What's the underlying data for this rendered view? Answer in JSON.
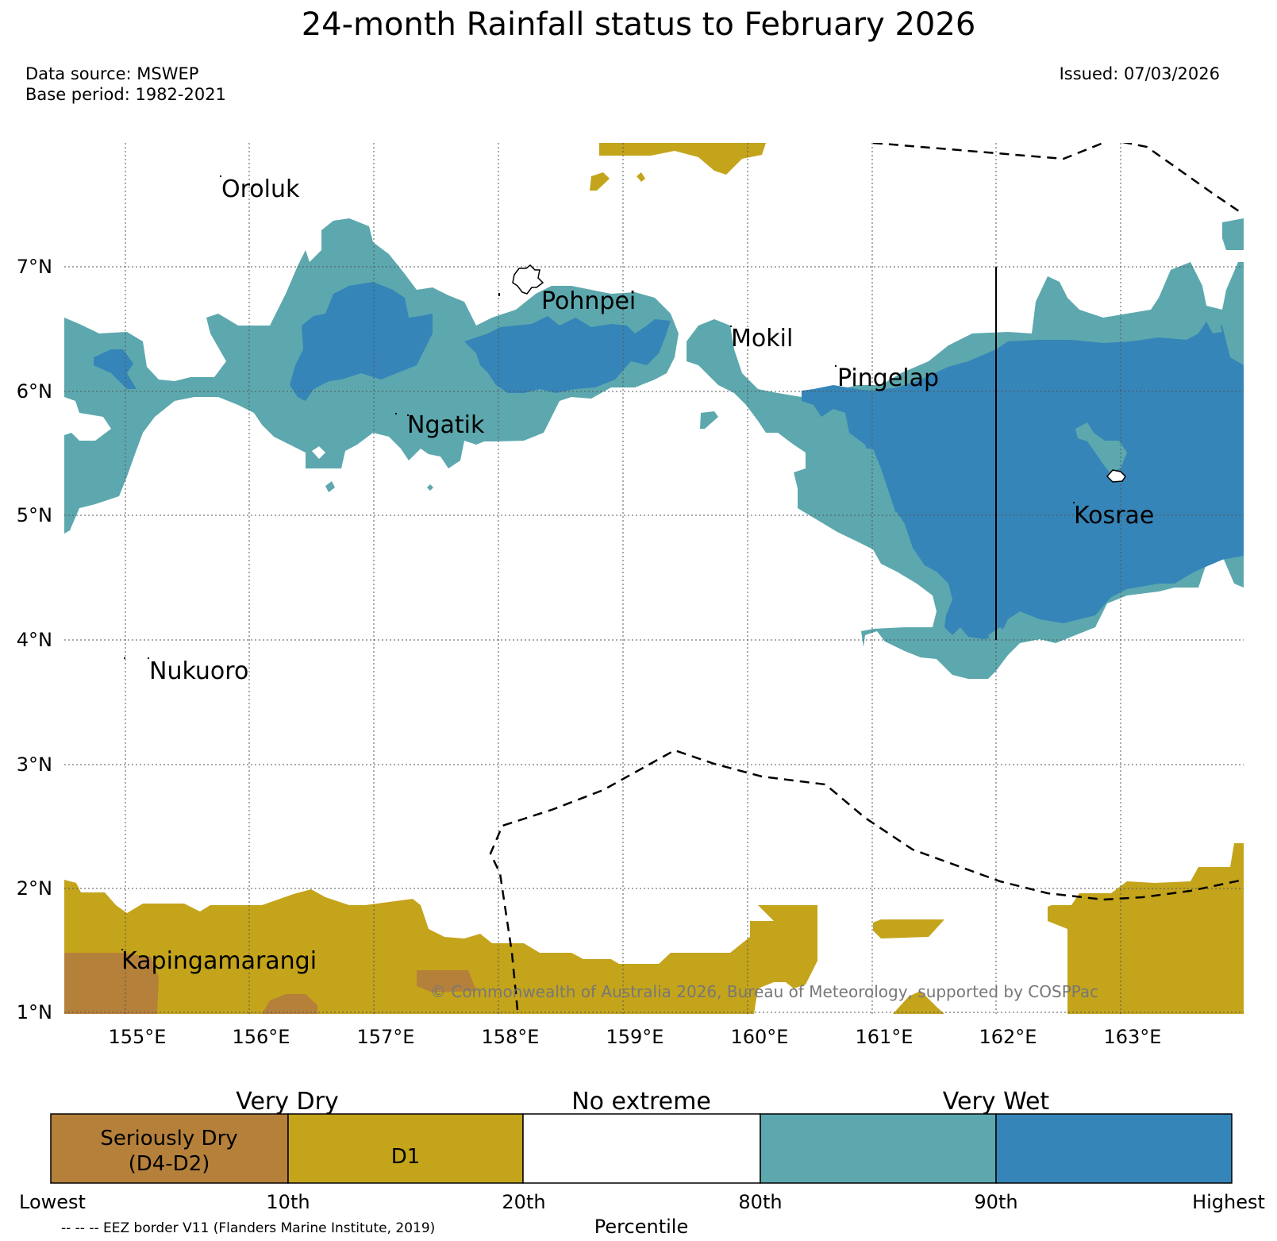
{
  "title": "24-month Rainfall status to February 2026",
  "data_source": "Data source: MSWEP",
  "base_period": "Base period: 1982-2021",
  "issued": "Issued: 07/03/2026",
  "copyright": "© Commonwealth of Australia 2026, Bureau of Meteorology, supported by COSPPac",
  "colors": {
    "seriously_dry": "#b5803a",
    "d1": "#c4a41b",
    "no_extreme": "#ffffff",
    "very_wet_80_90": "#5ca8ae",
    "very_wet_90_highest": "#3585b8"
  },
  "map": {
    "lat_labels": [
      "7°N",
      "6°N",
      "5°N",
      "4°N",
      "3°N",
      "2°N",
      "1°N"
    ],
    "lon_labels": [
      "155°E",
      "156°E",
      "157°E",
      "158°E",
      "159°E",
      "160°E",
      "161°E",
      "162°E",
      "163°E"
    ],
    "places": [
      {
        "name": "Oroluk"
      },
      {
        "name": "Pohnpei"
      },
      {
        "name": "Mokil"
      },
      {
        "name": "Pingelap"
      },
      {
        "name": "Ngatik"
      },
      {
        "name": "Kosrae"
      },
      {
        "name": "Nukuoro"
      },
      {
        "name": "Kapingamarangi"
      }
    ]
  },
  "legend": {
    "group_labels": [
      "Very Dry",
      "No extreme",
      "Very Wet"
    ],
    "boxes": [
      {
        "label_line1": "Seriously Dry",
        "label_line2": "(D4-D2)"
      },
      {
        "label_line1": "D1",
        "label_line2": ""
      },
      {
        "label_line1": "",
        "label_line2": ""
      },
      {
        "label_line1": "",
        "label_line2": ""
      },
      {
        "label_line1": "",
        "label_line2": ""
      }
    ],
    "ticks": [
      "Lowest",
      "10th",
      "20th",
      "80th",
      "90th",
      "Highest"
    ],
    "xlabel": "Percentile",
    "eez_note": "-- -- -- EEZ border V11 (Flanders Marine Institute, 2019)"
  }
}
